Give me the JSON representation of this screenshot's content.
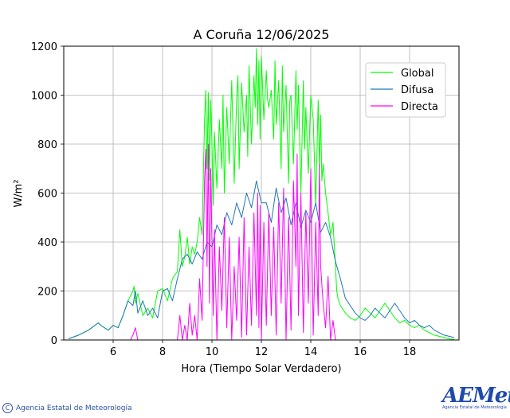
{
  "chart_data": {
    "type": "line",
    "title": "A Coruña 12/06/2025",
    "xlabel": "Hora (Tiempo Solar Verdadero)",
    "ylabel": "W/m²",
    "xlim": [
      4.0,
      20.0
    ],
    "ylim": [
      0,
      1200
    ],
    "xticks": [
      "6",
      "8",
      "10",
      "12",
      "14",
      "16",
      "18"
    ],
    "xtick_values": [
      6,
      8,
      10,
      12,
      14,
      16,
      18
    ],
    "yticks": [
      "0",
      "200",
      "400",
      "600",
      "800",
      "1000",
      "1200"
    ],
    "ytick_values": [
      0,
      200,
      400,
      600,
      800,
      1000,
      1200
    ],
    "grid": true,
    "legend_position": "top-right",
    "series": [
      {
        "name": "Global",
        "color": "#00ff00",
        "x": [
          4.2,
          4.6,
          5.0,
          5.4,
          5.5,
          5.8,
          6.0,
          6.2,
          6.4,
          6.6,
          6.8,
          6.85,
          6.9,
          7.0,
          7.2,
          7.4,
          7.6,
          7.8,
          8.0,
          8.2,
          8.4,
          8.6,
          8.7,
          8.8,
          8.9,
          9.0,
          9.1,
          9.2,
          9.3,
          9.4,
          9.5,
          9.6,
          9.7,
          9.75,
          9.8,
          9.85,
          9.9,
          9.95,
          10.0,
          10.05,
          10.1,
          10.2,
          10.3,
          10.4,
          10.45,
          10.5,
          10.6,
          10.7,
          10.8,
          10.9,
          11.0,
          11.05,
          11.1,
          11.2,
          11.3,
          11.4,
          11.45,
          11.5,
          11.6,
          11.7,
          11.75,
          11.8,
          11.85,
          11.9,
          11.95,
          12.0,
          12.1,
          12.2,
          12.25,
          12.3,
          12.4,
          12.5,
          12.55,
          12.6,
          12.7,
          12.8,
          12.85,
          12.9,
          13.0,
          13.1,
          13.15,
          13.2,
          13.3,
          13.4,
          13.45,
          13.5,
          13.6,
          13.7,
          13.75,
          13.8,
          13.9,
          14.0,
          14.1,
          14.2,
          14.3,
          14.35,
          14.4,
          14.45,
          14.5,
          14.6,
          14.7,
          14.8,
          14.9,
          15.0,
          15.05,
          15.1,
          15.2,
          15.4,
          15.6,
          15.8,
          16.0,
          16.2,
          16.4,
          16.6,
          16.8,
          17.0,
          17.2,
          17.4,
          17.6,
          17.8,
          18.0,
          18.2,
          18.4,
          18.6,
          18.8,
          19.0,
          19.2,
          19.4,
          19.6,
          19.8
        ],
        "values": [
          5,
          20,
          40,
          70,
          60,
          40,
          60,
          50,
          100,
          160,
          200,
          220,
          150,
          190,
          100,
          130,
          90,
          200,
          210,
          160,
          250,
          280,
          450,
          300,
          340,
          420,
          310,
          380,
          350,
          400,
          500,
          430,
          900,
          1020,
          700,
          1010,
          650,
          980,
          800,
          550,
          850,
          620,
          900,
          700,
          1000,
          600,
          950,
          720,
          1060,
          640,
          990,
          1080,
          700,
          1050,
          850,
          1000,
          750,
          1120,
          800,
          1080,
          950,
          1190,
          880,
          1140,
          820,
          1160,
          900,
          1100,
          980,
          950,
          1020,
          820,
          1140,
          880,
          1060,
          700,
          1120,
          850,
          1040,
          640,
          980,
          1000,
          720,
          1100,
          860,
          1040,
          600,
          1060,
          780,
          950,
          680,
          1000,
          900,
          550,
          980,
          700,
          920,
          650,
          720,
          600,
          520,
          430,
          480,
          300,
          200,
          170,
          140,
          110,
          90,
          80,
          100,
          130,
          110,
          90,
          120,
          150,
          120,
          90,
          70,
          80,
          60,
          50,
          60,
          40,
          30,
          20,
          15,
          10,
          5,
          2
        ]
      },
      {
        "name": "Difusa",
        "color": "#1f77b4",
        "x": [
          4.2,
          4.6,
          5.0,
          5.4,
          5.5,
          5.8,
          6.0,
          6.2,
          6.4,
          6.6,
          6.8,
          6.9,
          7.0,
          7.2,
          7.4,
          7.6,
          7.8,
          8.0,
          8.2,
          8.4,
          8.6,
          8.8,
          9.0,
          9.2,
          9.4,
          9.6,
          9.8,
          10.0,
          10.2,
          10.4,
          10.6,
          10.8,
          11.0,
          11.2,
          11.4,
          11.6,
          11.8,
          12.0,
          12.2,
          12.4,
          12.6,
          12.8,
          13.0,
          13.2,
          13.4,
          13.6,
          13.8,
          14.0,
          14.2,
          14.4,
          14.6,
          14.8,
          15.0,
          15.2,
          15.4,
          15.6,
          15.8,
          16.0,
          16.2,
          16.4,
          16.6,
          16.8,
          17.0,
          17.2,
          17.4,
          17.6,
          17.8,
          18.0,
          18.2,
          18.4,
          18.6,
          18.8,
          19.0,
          19.2,
          19.4,
          19.6,
          19.8
        ],
        "values": [
          5,
          20,
          40,
          70,
          60,
          40,
          60,
          50,
          100,
          160,
          140,
          200,
          110,
          160,
          100,
          130,
          90,
          200,
          210,
          160,
          250,
          330,
          350,
          310,
          360,
          330,
          400,
          380,
          470,
          430,
          520,
          470,
          560,
          500,
          600,
          540,
          650,
          560,
          560,
          480,
          620,
          520,
          580,
          470,
          560,
          460,
          530,
          480,
          560,
          440,
          480,
          420,
          320,
          250,
          170,
          140,
          110,
          90,
          80,
          100,
          130,
          110,
          90,
          120,
          150,
          120,
          90,
          70,
          80,
          60,
          50,
          60,
          40,
          30,
          20,
          15,
          10
        ]
      },
      {
        "name": "Directa",
        "color": "#ff00ff",
        "x": [
          6.7,
          6.8,
          6.9,
          7.0,
          8.6,
          8.7,
          8.8,
          8.9,
          9.0,
          9.1,
          9.2,
          9.3,
          9.4,
          9.5,
          9.6,
          9.7,
          9.75,
          9.8,
          9.85,
          9.9,
          9.95,
          10.0,
          10.05,
          10.1,
          10.2,
          10.3,
          10.4,
          10.5,
          10.6,
          10.7,
          10.8,
          10.9,
          11.0,
          11.1,
          11.2,
          11.3,
          11.4,
          11.5,
          11.6,
          11.7,
          11.8,
          11.85,
          11.9,
          11.95,
          12.0,
          12.1,
          12.2,
          12.3,
          12.4,
          12.5,
          12.6,
          12.7,
          12.8,
          12.9,
          13.0,
          13.1,
          13.2,
          13.3,
          13.4,
          13.45,
          13.5,
          13.6,
          13.7,
          13.8,
          13.9,
          14.0,
          14.1,
          14.2,
          14.3,
          14.35,
          14.4,
          14.5,
          14.6,
          14.7,
          14.8,
          14.9,
          15.0,
          15.1
        ],
        "values": [
          0,
          20,
          50,
          0,
          0,
          100,
          0,
          60,
          0,
          150,
          20,
          100,
          0,
          250,
          80,
          650,
          780,
          300,
          800,
          150,
          700,
          400,
          100,
          450,
          0,
          380,
          120,
          500,
          50,
          420,
          0,
          300,
          80,
          420,
          10,
          500,
          20,
          380,
          60,
          520,
          100,
          600,
          50,
          550,
          0,
          480,
          60,
          520,
          100,
          460,
          20,
          560,
          150,
          620,
          0,
          500,
          40,
          650,
          300,
          760,
          100,
          600,
          30,
          520,
          150,
          700,
          20,
          480,
          100,
          720,
          300,
          150,
          50,
          260,
          0,
          80,
          0,
          0
        ]
      }
    ]
  },
  "footer": {
    "copyright_symbol": "C",
    "agency": "Agencia Estatal de Meteorología",
    "logo_mark": "AEMet",
    "logo_sub": "Agencia Estatal de Meteorología"
  }
}
